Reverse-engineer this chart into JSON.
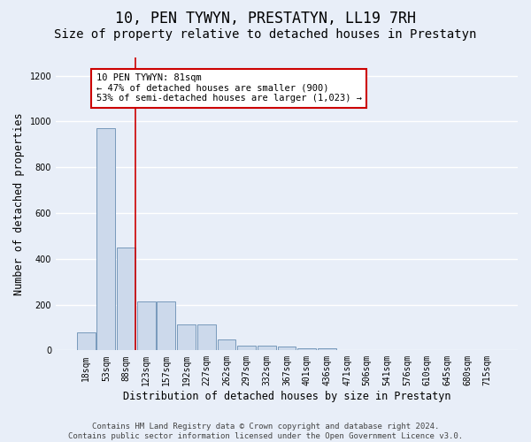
{
  "title": "10, PEN TYWYN, PRESTATYN, LL19 7RH",
  "subtitle": "Size of property relative to detached houses in Prestatyn",
  "xlabel": "Distribution of detached houses by size in Prestatyn",
  "ylabel": "Number of detached properties",
  "bar_labels": [
    "18sqm",
    "53sqm",
    "88sqm",
    "123sqm",
    "157sqm",
    "192sqm",
    "227sqm",
    "262sqm",
    "297sqm",
    "332sqm",
    "367sqm",
    "401sqm",
    "436sqm",
    "471sqm",
    "506sqm",
    "541sqm",
    "576sqm",
    "610sqm",
    "645sqm",
    "680sqm",
    "715sqm"
  ],
  "bar_values": [
    80,
    970,
    450,
    215,
    215,
    115,
    115,
    47,
    22,
    20,
    18,
    10,
    10,
    0,
    0,
    0,
    0,
    0,
    0,
    0,
    0
  ],
  "bar_color": "#ccd9eb",
  "bar_edge_color": "#7799bb",
  "bar_edge_width": 0.7,
  "ylim": [
    0,
    1280
  ],
  "yticks": [
    0,
    200,
    400,
    600,
    800,
    1000,
    1200
  ],
  "red_line_color": "#cc0000",
  "red_line_index": 2,
  "annotation_text": "10 PEN TYWYN: 81sqm\n← 47% of detached houses are smaller (900)\n53% of semi-detached houses are larger (1,023) →",
  "annotation_box_color": "#ffffff",
  "annotation_box_edge": "#cc0000",
  "footer_text": "Contains HM Land Registry data © Crown copyright and database right 2024.\nContains public sector information licensed under the Open Government Licence v3.0.",
  "background_color": "#e8eef8",
  "grid_color": "#ffffff",
  "title_fontsize": 12,
  "subtitle_fontsize": 10,
  "axis_label_fontsize": 8.5,
  "tick_fontsize": 7,
  "annotation_fontsize": 7.5,
  "footer_fontsize": 6.5
}
